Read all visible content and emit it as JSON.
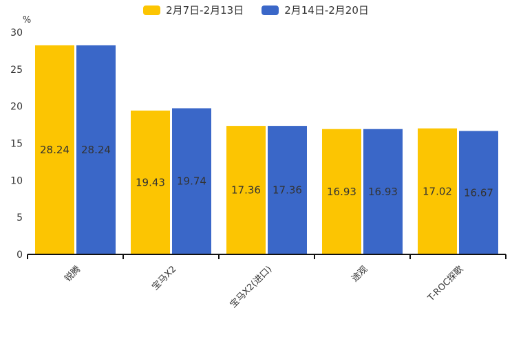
{
  "legend": {
    "position": "top"
  },
  "chart_data": {
    "type": "bar",
    "title": "",
    "unit_label": "%",
    "xlabel": "",
    "ylabel": "%",
    "categories": [
      "锐腾",
      "宝马X2",
      "宝马X2(进口)",
      "途观",
      "T-ROC探歌"
    ],
    "series": [
      {
        "name": "2月7日-2月13日",
        "color": "#FCC502",
        "values": [
          28.24,
          19.43,
          17.36,
          16.93,
          17.02
        ]
      },
      {
        "name": "2月14日-2月20日",
        "color": "#3A67C8",
        "values": [
          28.24,
          19.74,
          17.36,
          16.93,
          16.67
        ]
      }
    ],
    "ylim": [
      0,
      30
    ],
    "yticks": [
      0,
      5,
      10,
      15,
      20,
      25,
      30
    ],
    "grid": false,
    "legend_position": "top",
    "value_labels": "inside-center",
    "x_label_rotation": -45
  },
  "colors": {
    "axis": "#111111",
    "tick_text": "#333333",
    "value_label_text": "#333333",
    "background": "#ffffff"
  }
}
